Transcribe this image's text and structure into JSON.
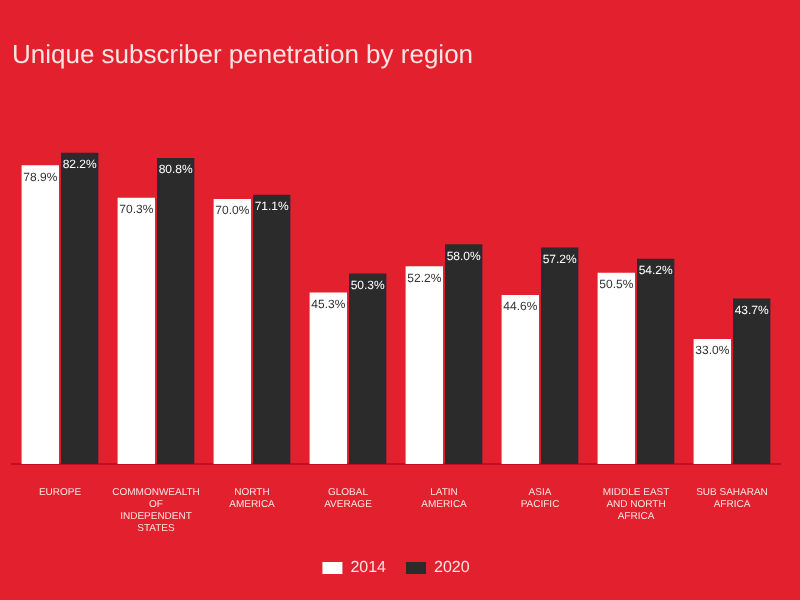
{
  "chart_data": {
    "type": "bar",
    "title": "Unique subscriber penetration by region",
    "categories": [
      "EUROPE",
      "COMMONWEALTH OF INDEPENDENT STATES",
      "NORTH AMERICA",
      "GLOBAL AVERAGE",
      "LATIN AMERICA",
      "ASIA PACIFIC",
      "MIDDLE EAST AND NORTH AFRICA",
      "SUB SAHARAN AFRICA"
    ],
    "series": [
      {
        "name": "2014",
        "color": "#ffffff",
        "values": [
          78.9,
          70.3,
          70.0,
          45.3,
          52.2,
          44.6,
          50.5,
          33.0
        ],
        "value_labels": [
          "78.9%",
          "70.3%",
          "70.0%",
          "45.3%",
          "52.2%",
          "44.6%",
          "50.5%",
          "33.0%"
        ]
      },
      {
        "name": "2020",
        "color": "#2b2b2b",
        "values": [
          82.2,
          80.8,
          71.1,
          50.3,
          58.0,
          57.2,
          54.2,
          43.7
        ],
        "value_labels": [
          "82.2%",
          "80.8%",
          "71.1%",
          "50.3%",
          "58.0%",
          "57.2%",
          "54.2%",
          "43.7%"
        ]
      }
    ],
    "legend": "bottom",
    "grid": false
  }
}
